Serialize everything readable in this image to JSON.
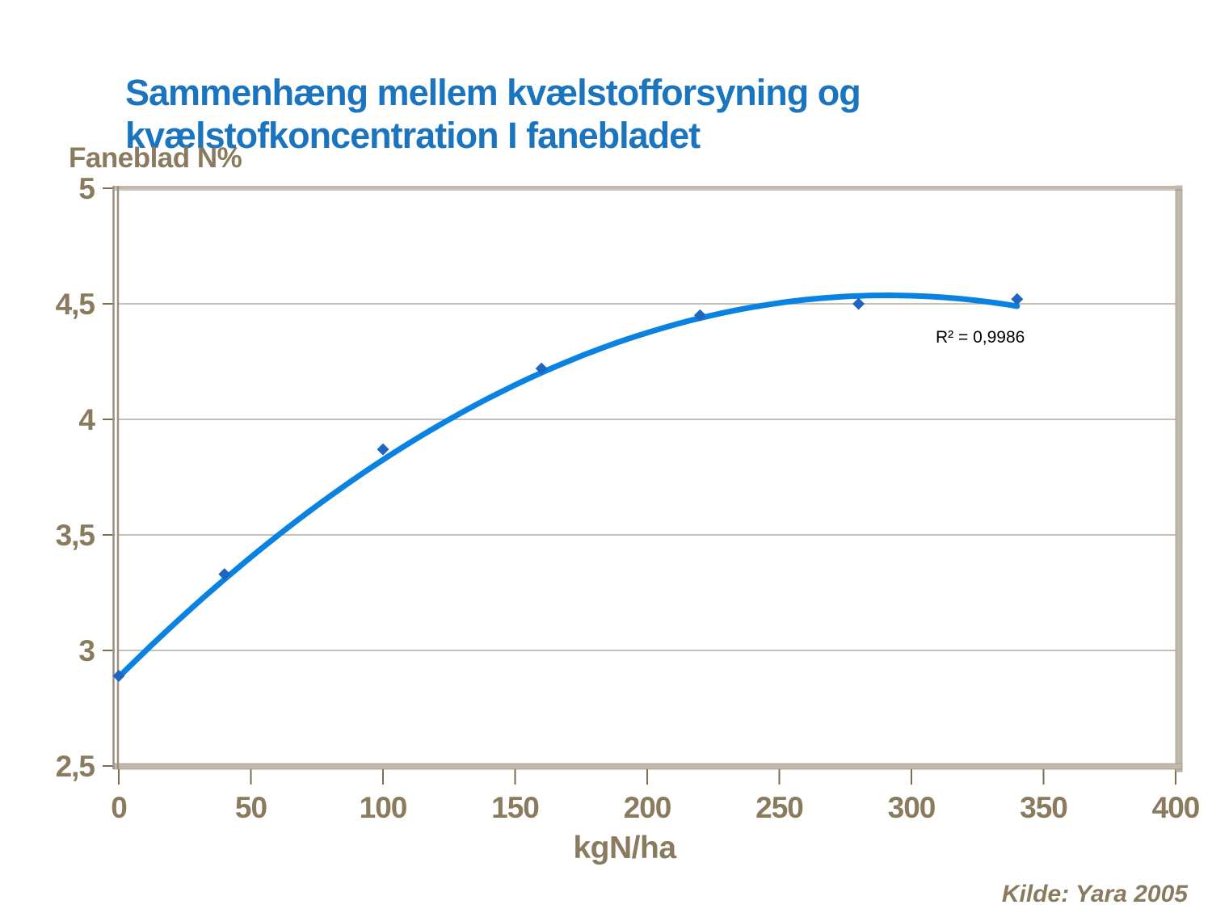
{
  "slide": {
    "title_lines": [
      "Sammenhæng mellem kvælstofforsyning og",
      "kvælstofkoncentration I fanebladet"
    ],
    "source": "Kilde: Yara 2005"
  },
  "chart_data": {
    "type": "scatter",
    "title": "Sammenhæng mellem kvælstofforsyning og kvælstofkoncentration I fanebladet",
    "xlabel": "kgN/ha",
    "ylabel": "Faneblad N%",
    "xlim": [
      0,
      400
    ],
    "ylim": [
      2.5,
      5
    ],
    "x_ticks": [
      0,
      50,
      100,
      150,
      200,
      250,
      300,
      350,
      400
    ],
    "x_tick_labels": [
      "0",
      "50",
      "100",
      "150",
      "200",
      "250",
      "300",
      "350",
      "400"
    ],
    "y_ticks": [
      2.5,
      3,
      3.5,
      4,
      4.5,
      5
    ],
    "y_tick_labels": [
      "2,5",
      "3",
      "3,5",
      "4",
      "4,5",
      "5"
    ],
    "grid": "horizontal",
    "legend": "none",
    "points": [
      {
        "x": 0,
        "y": 2.89
      },
      {
        "x": 40,
        "y": 3.33
      },
      {
        "x": 100,
        "y": 3.87
      },
      {
        "x": 160,
        "y": 4.22
      },
      {
        "x": 220,
        "y": 4.45
      },
      {
        "x": 280,
        "y": 4.5
      },
      {
        "x": 340,
        "y": 4.52
      }
    ],
    "trendline": {
      "type": "polynomial",
      "order": 2,
      "a": 2.885,
      "b": 0.01135,
      "c": -1.95e-05,
      "x_start": 0,
      "x_end": 340,
      "r2_label": "R² = 0,9986"
    },
    "colors": {
      "line": "#0a82e2",
      "marker": "#2065c0",
      "axis_text": "#8a7a5e",
      "tick": "#7d6c51",
      "grid": "#b4aa9b",
      "frame": "#c2b8ac",
      "frame_dark": "#9b9081",
      "title": "#1a74be",
      "annotation": "#000000"
    }
  }
}
